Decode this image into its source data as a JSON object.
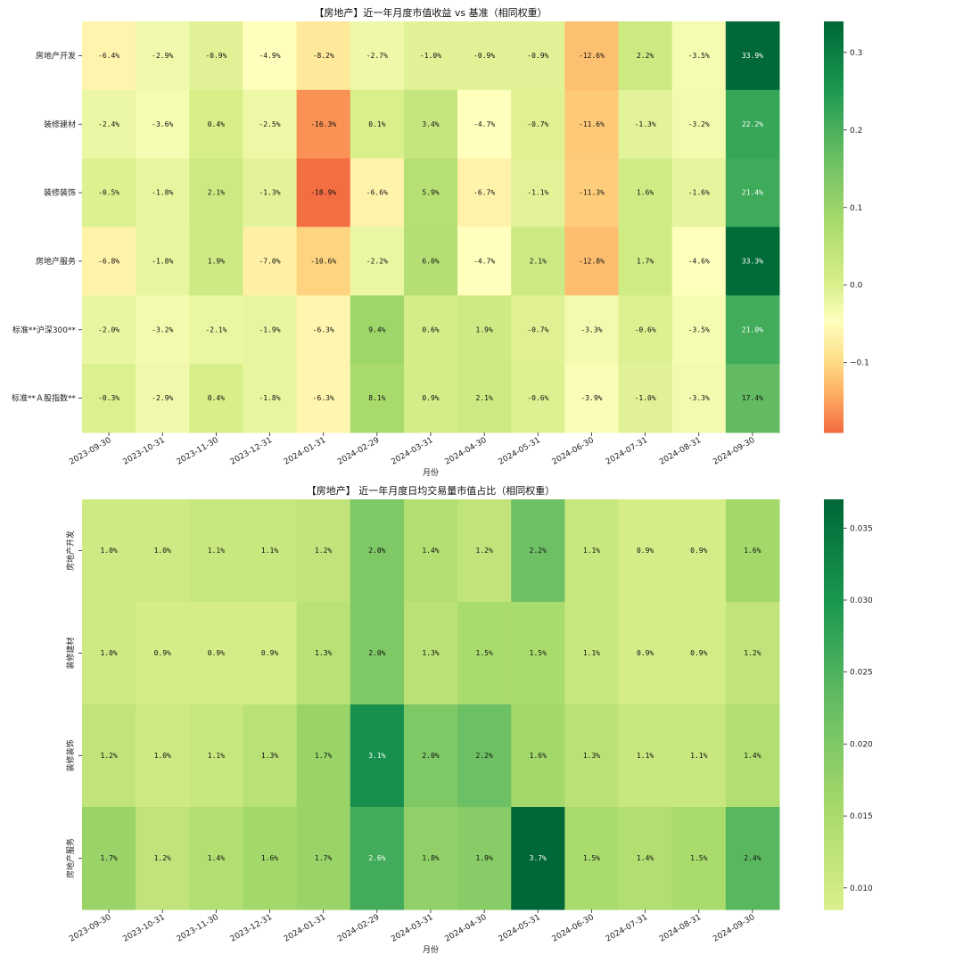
{
  "chart_data": [
    {
      "type": "heatmap",
      "title": "【房地产】近一年月度市值收益 vs 基准（相同权重）",
      "xlabel": "月份",
      "ylabel": "",
      "x": [
        "2023-09-30",
        "2023-10-31",
        "2023-11-30",
        "2023-12-31",
        "2024-01-31",
        "2024-02-29",
        "2024-03-31",
        "2024-04-30",
        "2024-05-31",
        "2024-06-30",
        "2024-07-31",
        "2024-08-31",
        "2024-09-30"
      ],
      "y": [
        "房地产开发",
        "装修建材",
        "装修装饰",
        "房地产服务",
        "标准**沪深300**",
        "标准**Ａ股指数**"
      ],
      "values": [
        [
          -0.064,
          -0.029,
          -0.009,
          -0.049,
          -0.082,
          -0.027,
          -0.01,
          -0.009,
          -0.009,
          -0.126,
          0.022,
          -0.035,
          0.339
        ],
        [
          -0.024,
          -0.036,
          0.004,
          -0.025,
          -0.163,
          0.001,
          0.034,
          -0.047,
          -0.007,
          -0.116,
          -0.013,
          -0.032,
          0.222
        ],
        [
          -0.005,
          -0.018,
          0.021,
          -0.013,
          -0.189,
          -0.066,
          0.059,
          -0.067,
          -0.011,
          -0.113,
          0.016,
          -0.016,
          0.214
        ],
        [
          -0.068,
          -0.018,
          0.019,
          -0.07,
          -0.106,
          -0.022,
          0.06,
          -0.047,
          0.021,
          -0.128,
          0.017,
          -0.046,
          0.333
        ],
        [
          -0.02,
          -0.032,
          -0.021,
          -0.019,
          -0.063,
          0.094,
          0.006,
          0.019,
          -0.007,
          -0.033,
          -0.006,
          -0.035,
          0.21
        ],
        [
          -0.003,
          -0.029,
          0.004,
          -0.018,
          -0.063,
          0.081,
          0.009,
          0.021,
          -0.006,
          -0.039,
          -0.01,
          -0.033,
          0.174
        ]
      ],
      "labels": [
        [
          "-6.4%",
          "-2.9%",
          "-0.9%",
          "-4.9%",
          "-8.2%",
          "-2.7%",
          "-1.0%",
          "-0.9%",
          "-0.9%",
          "-12.6%",
          "2.2%",
          "-3.5%",
          "33.9%"
        ],
        [
          "-2.4%",
          "-3.6%",
          "0.4%",
          "-2.5%",
          "-16.3%",
          "0.1%",
          "3.4%",
          "-4.7%",
          "-0.7%",
          "-11.6%",
          "-1.3%",
          "-3.2%",
          "22.2%"
        ],
        [
          "-0.5%",
          "-1.8%",
          "2.1%",
          "-1.3%",
          "-18.9%",
          "-6.6%",
          "5.9%",
          "-6.7%",
          "-1.1%",
          "-11.3%",
          "1.6%",
          "-1.6%",
          "21.4%"
        ],
        [
          "-6.8%",
          "-1.8%",
          "1.9%",
          "-7.0%",
          "-10.6%",
          "-2.2%",
          "6.0%",
          "-4.7%",
          "2.1%",
          "-12.8%",
          "1.7%",
          "-4.6%",
          "33.3%"
        ],
        [
          "-2.0%",
          "-3.2%",
          "-2.1%",
          "-1.9%",
          "-6.3%",
          "9.4%",
          "0.6%",
          "1.9%",
          "-0.7%",
          "-3.3%",
          "-0.6%",
          "-3.5%",
          "21.0%"
        ],
        [
          "-0.3%",
          "-2.9%",
          "0.4%",
          "-1.8%",
          "-6.3%",
          "8.1%",
          "0.9%",
          "2.1%",
          "-0.6%",
          "-3.9%",
          "-1.0%",
          "-3.3%",
          "17.4%"
        ]
      ],
      "colorscale": "RdYlGn diverging, centered at 0",
      "vmin": -0.19,
      "vmax": 0.34,
      "center": 0,
      "colorbar_ticks": [
        -0.1,
        0.0,
        0.1,
        0.2,
        0.3
      ],
      "colorbar_tick_labels": [
        "−0.1",
        "0.0",
        "0.1",
        "0.2",
        "0.3"
      ],
      "y_tick_rotation": "horizontal"
    },
    {
      "type": "heatmap",
      "title": "【房地产】 近一年月度日均交易量市值占比（相同权重）",
      "xlabel": "月份",
      "ylabel": "",
      "x": [
        "2023-09-30",
        "2023-10-31",
        "2023-11-30",
        "2023-12-31",
        "2024-01-31",
        "2024-02-29",
        "2024-03-31",
        "2024-04-30",
        "2024-05-31",
        "2024-06-30",
        "2024-07-31",
        "2024-08-31",
        "2024-09-30"
      ],
      "y": [
        "房地产开发",
        "装修建材",
        "装修装饰",
        "房地产服务"
      ],
      "values": [
        [
          0.01,
          0.01,
          0.011,
          0.011,
          0.012,
          0.02,
          0.014,
          0.012,
          0.022,
          0.011,
          0.009,
          0.009,
          0.016
        ],
        [
          0.01,
          0.009,
          0.009,
          0.009,
          0.013,
          0.02,
          0.013,
          0.015,
          0.015,
          0.011,
          0.009,
          0.009,
          0.012
        ],
        [
          0.012,
          0.01,
          0.011,
          0.013,
          0.017,
          0.031,
          0.02,
          0.022,
          0.016,
          0.013,
          0.011,
          0.011,
          0.014
        ],
        [
          0.017,
          0.012,
          0.014,
          0.016,
          0.017,
          0.026,
          0.018,
          0.019,
          0.037,
          0.015,
          0.014,
          0.015,
          0.024
        ]
      ],
      "labels": [
        [
          "1.0%",
          "1.0%",
          "1.1%",
          "1.1%",
          "1.2%",
          "2.0%",
          "1.4%",
          "1.2%",
          "2.2%",
          "1.1%",
          "0.9%",
          "0.9%",
          "1.6%"
        ],
        [
          "1.0%",
          "0.9%",
          "0.9%",
          "0.9%",
          "1.3%",
          "2.0%",
          "1.3%",
          "1.5%",
          "1.5%",
          "1.1%",
          "0.9%",
          "0.9%",
          "1.2%"
        ],
        [
          "1.2%",
          "1.0%",
          "1.1%",
          "1.3%",
          "1.7%",
          "3.1%",
          "2.0%",
          "2.2%",
          "1.6%",
          "1.3%",
          "1.1%",
          "1.1%",
          "1.4%"
        ],
        [
          "1.7%",
          "1.2%",
          "1.4%",
          "1.6%",
          "1.7%",
          "2.6%",
          "1.8%",
          "1.9%",
          "3.7%",
          "1.5%",
          "1.4%",
          "1.5%",
          "2.4%"
        ]
      ],
      "colorscale": "YlGn (upper range)",
      "vmin": 0.0085,
      "vmax": 0.037,
      "colorbar_ticks": [
        0.01,
        0.015,
        0.02,
        0.025,
        0.03,
        0.035
      ],
      "colorbar_tick_labels": [
        "0.010",
        "0.015",
        "0.020",
        "0.025",
        "0.030",
        "0.035"
      ],
      "y_tick_rotation": "vertical"
    }
  ],
  "colors": {
    "diverging_stops": [
      "#f46d43",
      "#fdae61",
      "#fee08b",
      "#ffffbf",
      "#d9ef8b",
      "#a6d96a",
      "#66bd63",
      "#1a9850",
      "#006837"
    ],
    "sequential_stops": [
      "#d9ef8b",
      "#a6d96a",
      "#66bd63",
      "#1a9850",
      "#006837"
    ]
  }
}
